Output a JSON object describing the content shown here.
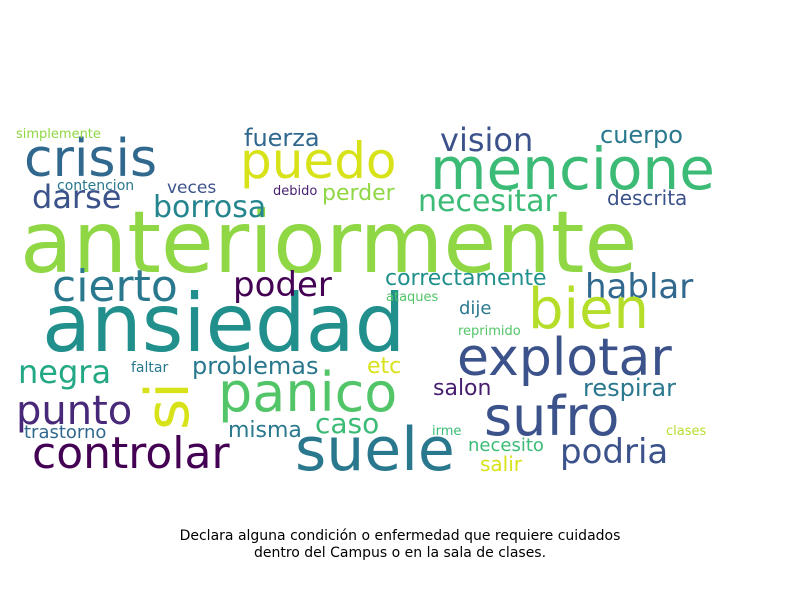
{
  "caption": {
    "line1": "Declara alguna condición o enfermedad que requiere cuidados",
    "line2": "dentro del Campus o en la sala de clases."
  },
  "words": [
    {
      "text": "anteriormente",
      "color": "#8fd744"
    },
    {
      "text": "ansiedad",
      "color": "#21908d"
    },
    {
      "text": "crisis",
      "color": "#31688e"
    },
    {
      "text": "puedo",
      "color": "#d8e219"
    },
    {
      "text": "mencione",
      "color": "#3bbb75"
    },
    {
      "text": "vision",
      "color": "#3b528b"
    },
    {
      "text": "cuerpo",
      "color": "#2a788e"
    },
    {
      "text": "fuerza",
      "color": "#31688e"
    },
    {
      "text": "simplemente",
      "color": "#8fd744"
    },
    {
      "text": "darse",
      "color": "#3b528b"
    },
    {
      "text": "borrosa",
      "color": "#25858e"
    },
    {
      "text": "necesitar",
      "color": "#3bbb75"
    },
    {
      "text": "descrita",
      "color": "#3b528b"
    },
    {
      "text": "contencion",
      "color": "#2a788e"
    },
    {
      "text": "veces",
      "color": "#3b528b"
    },
    {
      "text": "debido",
      "color": "#481f70"
    },
    {
      "text": "perder",
      "color": "#8fd744"
    },
    {
      "text": "cierto",
      "color": "#2a788e"
    },
    {
      "text": "poder",
      "color": "#440154"
    },
    {
      "text": "correctamente",
      "color": "#21908d"
    },
    {
      "text": "hablar",
      "color": "#31688e"
    },
    {
      "text": "bien",
      "color": "#b5de2b"
    },
    {
      "text": "ataques",
      "color": "#52c569"
    },
    {
      "text": "dije",
      "color": "#2a788e"
    },
    {
      "text": "reprimido",
      "color": "#52c569"
    },
    {
      "text": "explotar",
      "color": "#3b528b"
    },
    {
      "text": "negra",
      "color": "#22a884"
    },
    {
      "text": "si",
      "color": "#d8e219"
    },
    {
      "text": "faltar",
      "color": "#2a788e"
    },
    {
      "text": "problemas",
      "color": "#2a788e"
    },
    {
      "text": "etc",
      "color": "#d8e219"
    },
    {
      "text": "panico",
      "color": "#52c569"
    },
    {
      "text": "salon",
      "color": "#481f70"
    },
    {
      "text": "respirar",
      "color": "#2a788e"
    },
    {
      "text": "punto",
      "color": "#482878"
    },
    {
      "text": "sufro",
      "color": "#3b528b"
    },
    {
      "text": "misma",
      "color": "#2a788e"
    },
    {
      "text": "caso",
      "color": "#3bbb75"
    },
    {
      "text": "trastorno",
      "color": "#31688e"
    },
    {
      "text": "irme",
      "color": "#3bbb75"
    },
    {
      "text": "clases",
      "color": "#b5de2b"
    },
    {
      "text": "controlar",
      "color": "#440154"
    },
    {
      "text": "suele",
      "color": "#2a788e"
    },
    {
      "text": "necesito",
      "color": "#3bbb75"
    },
    {
      "text": "podria",
      "color": "#3b528b"
    },
    {
      "text": "salir",
      "color": "#d8e219"
    }
  ]
}
